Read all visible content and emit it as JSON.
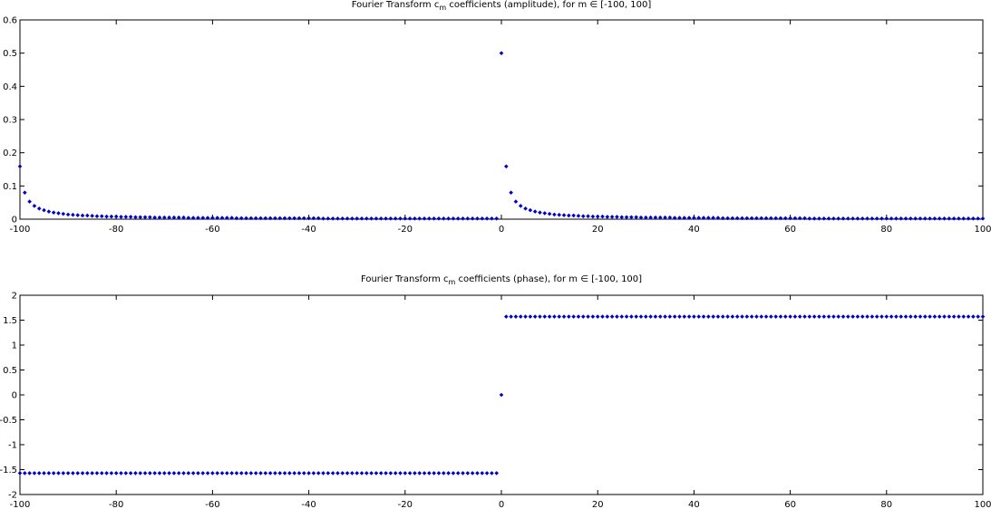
{
  "chart_data": [
    {
      "type": "scatter",
      "title": [
        "Fourier Transform c",
        "m",
        " coefficients (amplitude), for m ∈ [-100, 100]"
      ],
      "color": "#0000c8",
      "xlim": [
        -100,
        100
      ],
      "xticks": [
        -100,
        -80,
        -60,
        -40,
        -20,
        0,
        20,
        40,
        60,
        80,
        100
      ],
      "ylim": [
        0,
        0.6
      ],
      "yticks": [
        0,
        0.1,
        0.2,
        0.3,
        0.4,
        0.5,
        0.6
      ],
      "x": [
        -100,
        -99,
        -98,
        -97,
        -96,
        -95,
        -94,
        -93,
        -92,
        -91,
        -90,
        -89,
        -88,
        -87,
        -86,
        -85,
        -84,
        -83,
        -82,
        -81,
        -80,
        -79,
        -78,
        -77,
        -76,
        -75,
        -74,
        -73,
        -72,
        -71,
        -70,
        -69,
        -68,
        -67,
        -66,
        -65,
        -64,
        -63,
        -62,
        -61,
        -60,
        -59,
        -58,
        -57,
        -56,
        -55,
        -54,
        -53,
        -52,
        -51,
        -50,
        -49,
        -48,
        -47,
        -46,
        -45,
        -44,
        -43,
        -42,
        -41,
        -40,
        -39,
        -38,
        -37,
        -36,
        -35,
        -34,
        -33,
        -32,
        -31,
        -30,
        -29,
        -28,
        -27,
        -26,
        -25,
        -24,
        -23,
        -22,
        -21,
        -20,
        -19,
        -18,
        -17,
        -16,
        -15,
        -14,
        -13,
        -12,
        -11,
        -10,
        -9,
        -8,
        -7,
        -6,
        -5,
        -4,
        -3,
        -2,
        -1,
        0,
        1,
        2,
        3,
        4,
        5,
        6,
        7,
        8,
        9,
        10,
        11,
        12,
        13,
        14,
        15,
        16,
        17,
        18,
        19,
        20,
        21,
        22,
        23,
        24,
        25,
        26,
        27,
        28,
        29,
        30,
        31,
        32,
        33,
        34,
        35,
        36,
        37,
        38,
        39,
        40,
        41,
        42,
        43,
        44,
        45,
        46,
        47,
        48,
        49,
        50,
        51,
        52,
        53,
        54,
        55,
        56,
        57,
        58,
        59,
        60,
        61,
        62,
        63,
        64,
        65,
        66,
        67,
        68,
        69,
        70,
        71,
        72,
        73,
        74,
        75,
        76,
        77,
        78,
        79,
        80,
        81,
        82,
        83,
        84,
        85,
        86,
        87,
        88,
        89,
        90,
        91,
        92,
        93,
        94,
        95,
        96,
        97,
        98,
        99,
        100
      ],
      "values": [
        0.159,
        0.08,
        0.053,
        0.04,
        0.032,
        0.027,
        0.023,
        0.02,
        0.018,
        0.016,
        0.014,
        0.013,
        0.012,
        0.011,
        0.011,
        0.01,
        0.009,
        0.009,
        0.008,
        0.008,
        0.008,
        0.007,
        0.007,
        0.007,
        0.006,
        0.006,
        0.006,
        0.006,
        0.005,
        0.005,
        0.005,
        0.005,
        0.005,
        0.005,
        0.005,
        0.004,
        0.004,
        0.004,
        0.004,
        0.004,
        0.004,
        0.004,
        0.004,
        0.004,
        0.004,
        0.003,
        0.003,
        0.003,
        0.003,
        0.003,
        0.003,
        0.003,
        0.003,
        0.003,
        0.003,
        0.003,
        0.003,
        0.003,
        0.003,
        0.003,
        0.003,
        0.003,
        0.003,
        0.002,
        0.002,
        0.002,
        0.002,
        0.002,
        0.002,
        0.002,
        0.002,
        0.002,
        0.002,
        0.002,
        0.002,
        0.002,
        0.002,
        0.002,
        0.002,
        0.002,
        0.002,
        0.002,
        0.002,
        0.002,
        0.002,
        0.002,
        0.002,
        0.002,
        0.002,
        0.002,
        0.002,
        0.002,
        0.002,
        0.002,
        0.002,
        0.002,
        0.002,
        0.002,
        0.002,
        0.002,
        0.5,
        0.159,
        0.08,
        0.053,
        0.04,
        0.032,
        0.027,
        0.023,
        0.02,
        0.018,
        0.016,
        0.014,
        0.013,
        0.012,
        0.011,
        0.011,
        0.01,
        0.009,
        0.009,
        0.008,
        0.008,
        0.008,
        0.007,
        0.007,
        0.007,
        0.006,
        0.006,
        0.006,
        0.006,
        0.005,
        0.005,
        0.005,
        0.005,
        0.005,
        0.005,
        0.005,
        0.004,
        0.004,
        0.004,
        0.004,
        0.004,
        0.004,
        0.004,
        0.004,
        0.004,
        0.004,
        0.003,
        0.003,
        0.003,
        0.003,
        0.003,
        0.003,
        0.003,
        0.003,
        0.003,
        0.003,
        0.003,
        0.003,
        0.003,
        0.003,
        0.003,
        0.003,
        0.003,
        0.003,
        0.002,
        0.002,
        0.002,
        0.002,
        0.002,
        0.002,
        0.002,
        0.002,
        0.002,
        0.002,
        0.002,
        0.002,
        0.002,
        0.002,
        0.002,
        0.002,
        0.002,
        0.002,
        0.002,
        0.002,
        0.002,
        0.002,
        0.002,
        0.002,
        0.002,
        0.002,
        0.002,
        0.002,
        0.002,
        0.002,
        0.002,
        0.002,
        0.002,
        0.002,
        0.002,
        0.002,
        0.002
      ]
    },
    {
      "type": "scatter",
      "title": [
        "Fourier Transform c",
        "m",
        " coefficients (phase), for m ∈ [-100, 100]"
      ],
      "color": "#0000c8",
      "xlim": [
        -100,
        100
      ],
      "xticks": [
        -100,
        -80,
        -60,
        -40,
        -20,
        0,
        20,
        40,
        60,
        80,
        100
      ],
      "ylim": [
        -2,
        2
      ],
      "yticks": [
        -2,
        -1.5,
        -1,
        -0.5,
        0,
        0.5,
        1,
        1.5,
        2
      ],
      "x": [
        -100,
        -99,
        -98,
        -97,
        -96,
        -95,
        -94,
        -93,
        -92,
        -91,
        -90,
        -89,
        -88,
        -87,
        -86,
        -85,
        -84,
        -83,
        -82,
        -81,
        -80,
        -79,
        -78,
        -77,
        -76,
        -75,
        -74,
        -73,
        -72,
        -71,
        -70,
        -69,
        -68,
        -67,
        -66,
        -65,
        -64,
        -63,
        -62,
        -61,
        -60,
        -59,
        -58,
        -57,
        -56,
        -55,
        -54,
        -53,
        -52,
        -51,
        -50,
        -49,
        -48,
        -47,
        -46,
        -45,
        -44,
        -43,
        -42,
        -41,
        -40,
        -39,
        -38,
        -37,
        -36,
        -35,
        -34,
        -33,
        -32,
        -31,
        -30,
        -29,
        -28,
        -27,
        -26,
        -25,
        -24,
        -23,
        -22,
        -21,
        -20,
        -19,
        -18,
        -17,
        -16,
        -15,
        -14,
        -13,
        -12,
        -11,
        -10,
        -9,
        -8,
        -7,
        -6,
        -5,
        -4,
        -3,
        -2,
        -1,
        0,
        1,
        2,
        3,
        4,
        5,
        6,
        7,
        8,
        9,
        10,
        11,
        12,
        13,
        14,
        15,
        16,
        17,
        18,
        19,
        20,
        21,
        22,
        23,
        24,
        25,
        26,
        27,
        28,
        29,
        30,
        31,
        32,
        33,
        34,
        35,
        36,
        37,
        38,
        39,
        40,
        41,
        42,
        43,
        44,
        45,
        46,
        47,
        48,
        49,
        50,
        51,
        52,
        53,
        54,
        55,
        56,
        57,
        58,
        59,
        60,
        61,
        62,
        63,
        64,
        65,
        66,
        67,
        68,
        69,
        70,
        71,
        72,
        73,
        74,
        75,
        76,
        77,
        78,
        79,
        80,
        81,
        82,
        83,
        84,
        85,
        86,
        87,
        88,
        89,
        90,
        91,
        92,
        93,
        94,
        95,
        96,
        97,
        98,
        99,
        100
      ],
      "values": [
        -1.571,
        -1.571,
        -1.571,
        -1.571,
        -1.571,
        -1.571,
        -1.571,
        -1.571,
        -1.571,
        -1.571,
        -1.571,
        -1.571,
        -1.571,
        -1.571,
        -1.571,
        -1.571,
        -1.571,
        -1.571,
        -1.571,
        -1.571,
        -1.571,
        -1.571,
        -1.571,
        -1.571,
        -1.571,
        -1.571,
        -1.571,
        -1.571,
        -1.571,
        -1.571,
        -1.571,
        -1.571,
        -1.571,
        -1.571,
        -1.571,
        -1.571,
        -1.571,
        -1.571,
        -1.571,
        -1.571,
        -1.571,
        -1.571,
        -1.571,
        -1.571,
        -1.571,
        -1.571,
        -1.571,
        -1.571,
        -1.571,
        -1.571,
        -1.571,
        -1.571,
        -1.571,
        -1.571,
        -1.571,
        -1.571,
        -1.571,
        -1.571,
        -1.571,
        -1.571,
        -1.571,
        -1.571,
        -1.571,
        -1.571,
        -1.571,
        -1.571,
        -1.571,
        -1.571,
        -1.571,
        -1.571,
        -1.571,
        -1.571,
        -1.571,
        -1.571,
        -1.571,
        -1.571,
        -1.571,
        -1.571,
        -1.571,
        -1.571,
        -1.571,
        -1.571,
        -1.571,
        -1.571,
        -1.571,
        -1.571,
        -1.571,
        -1.571,
        -1.571,
        -1.571,
        -1.571,
        -1.571,
        -1.571,
        -1.571,
        -1.571,
        -1.571,
        -1.571,
        -1.571,
        -1.571,
        -1.571,
        0,
        1.571,
        1.571,
        1.571,
        1.571,
        1.571,
        1.571,
        1.571,
        1.571,
        1.571,
        1.571,
        1.571,
        1.571,
        1.571,
        1.571,
        1.571,
        1.571,
        1.571,
        1.571,
        1.571,
        1.571,
        1.571,
        1.571,
        1.571,
        1.571,
        1.571,
        1.571,
        1.571,
        1.571,
        1.571,
        1.571,
        1.571,
        1.571,
        1.571,
        1.571,
        1.571,
        1.571,
        1.571,
        1.571,
        1.571,
        1.571,
        1.571,
        1.571,
        1.571,
        1.571,
        1.571,
        1.571,
        1.571,
        1.571,
        1.571,
        1.571,
        1.571,
        1.571,
        1.571,
        1.571,
        1.571,
        1.571,
        1.571,
        1.571,
        1.571,
        1.571,
        1.571,
        1.571,
        1.571,
        1.571,
        1.571,
        1.571,
        1.571,
        1.571,
        1.571,
        1.571,
        1.571,
        1.571,
        1.571,
        1.571,
        1.571,
        1.571,
        1.571,
        1.571,
        1.571,
        1.571,
        1.571,
        1.571,
        1.571,
        1.571,
        1.571,
        1.571,
        1.571,
        1.571,
        1.571,
        1.571,
        1.571,
        1.571,
        1.571,
        1.571,
        1.571,
        1.571,
        1.571,
        1.571,
        1.571,
        1.571
      ]
    }
  ]
}
